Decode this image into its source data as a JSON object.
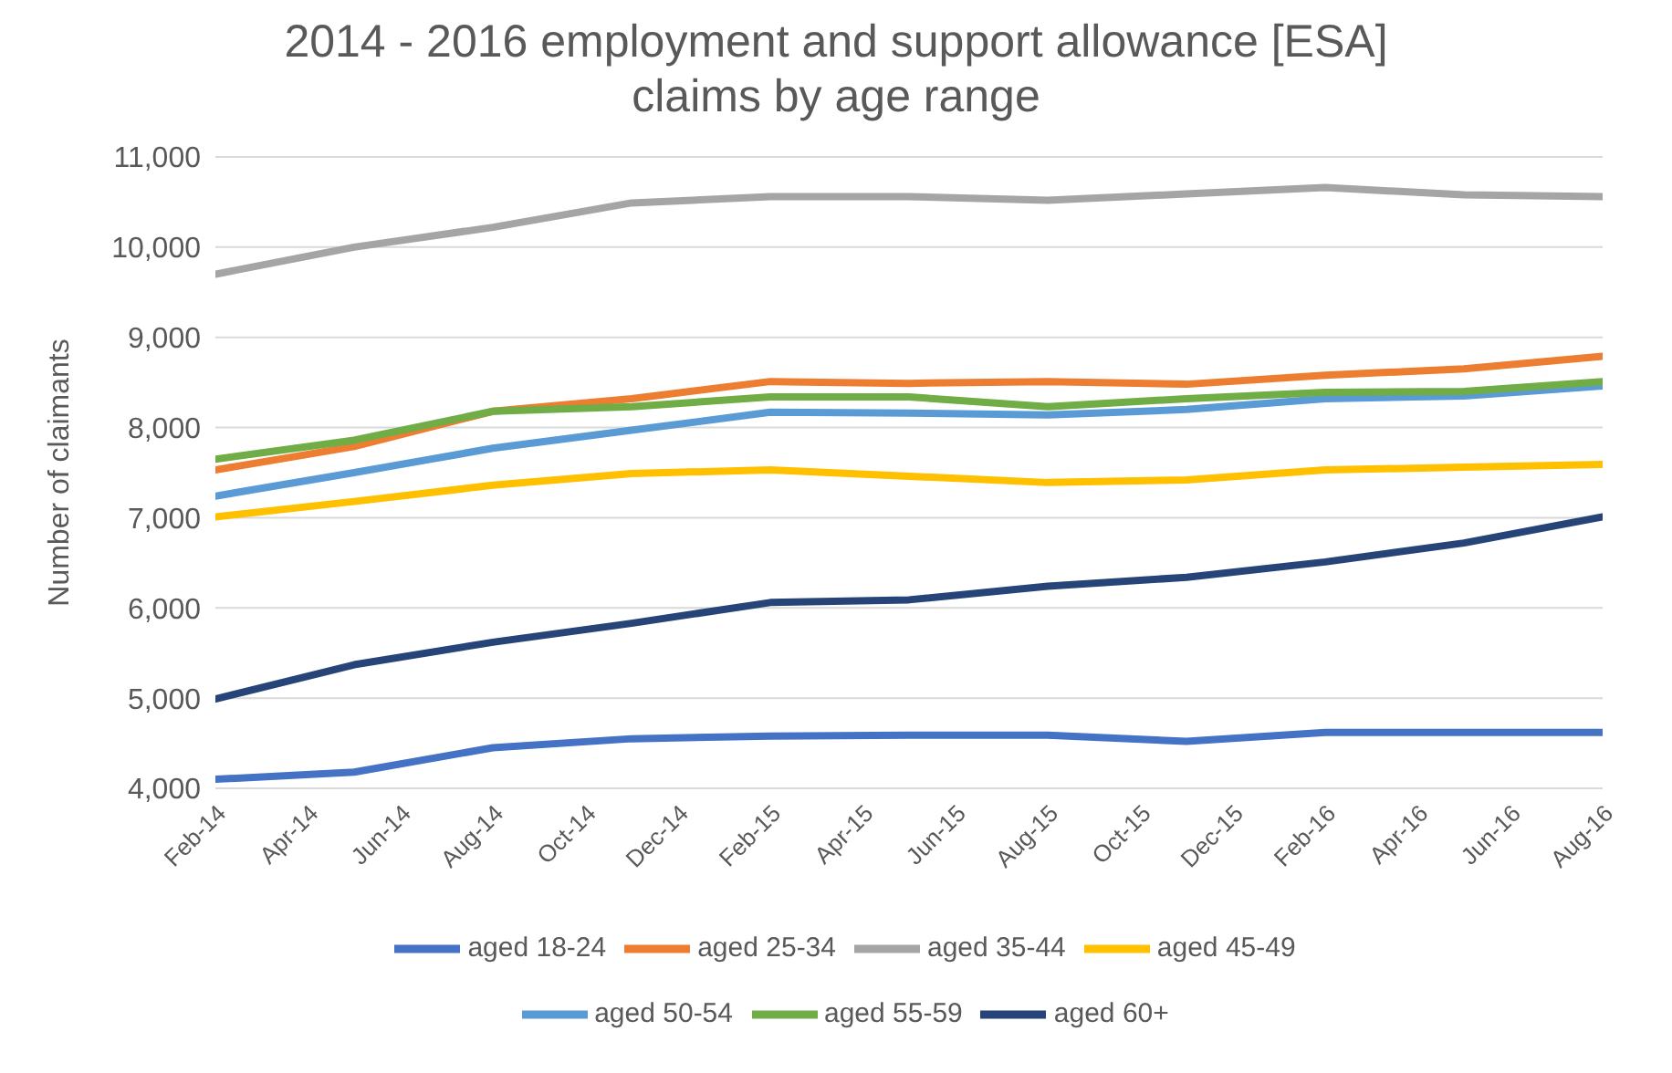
{
  "chart_data": {
    "type": "line",
    "title": "2014 - 2016 employment and support allowance [ESA] claims by age range",
    "ylabel": "Number  of claimants",
    "x": [
      "2014-02",
      "2014-05",
      "2014-08",
      "2014-11",
      "2015-02",
      "2015-05",
      "2015-08",
      "2015-11",
      "2016-02",
      "2016-05",
      "2016-08"
    ],
    "series": [
      {
        "name": "aged 18-24",
        "color": "#4472c4",
        "values": [
          4100,
          4180,
          4450,
          4550,
          4580,
          4590,
          4590,
          4520,
          4620,
          4620,
          4620
        ]
      },
      {
        "name": "aged 25-34",
        "color": "#ed7d31",
        "values": [
          7530,
          7790,
          8180,
          8320,
          8510,
          8490,
          8510,
          8480,
          8580,
          8650,
          8790
        ]
      },
      {
        "name": "aged 35-44",
        "color": "#a5a5a5",
        "values": [
          9700,
          10000,
          10220,
          10490,
          10560,
          10560,
          10520,
          10590,
          10660,
          10580,
          10560
        ]
      },
      {
        "name": "aged 45-49",
        "color": "#ffc000",
        "values": [
          7010,
          7180,
          7360,
          7490,
          7530,
          7460,
          7390,
          7420,
          7530,
          7560,
          7590
        ]
      },
      {
        "name": "aged 50-54",
        "color": "#5b9bd5",
        "values": [
          7240,
          7500,
          7770,
          7970,
          8170,
          8160,
          8140,
          8200,
          8320,
          8350,
          8460
        ]
      },
      {
        "name": "aged 55-59",
        "color": "#70ad47",
        "values": [
          7650,
          7860,
          8180,
          8230,
          8340,
          8340,
          8230,
          8320,
          8390,
          8400,
          8510
        ]
      },
      {
        "name": "aged 60+",
        "color": "#264478",
        "values": [
          4990,
          5370,
          5620,
          5830,
          6060,
          6090,
          6240,
          6340,
          6510,
          6720,
          7010
        ]
      }
    ],
    "xlim": [
      "2014-02",
      "2016-08"
    ],
    "xticks": [
      {
        "value": "2014-02",
        "label": "Feb-14"
      },
      {
        "value": "2014-04",
        "label": "Apr-14"
      },
      {
        "value": "2014-06",
        "label": "Jun-14"
      },
      {
        "value": "2014-08",
        "label": "Aug-14"
      },
      {
        "value": "2014-10",
        "label": "Oct-14"
      },
      {
        "value": "2014-12",
        "label": "Dec-14"
      },
      {
        "value": "2015-02",
        "label": "Feb-15"
      },
      {
        "value": "2015-04",
        "label": "Apr-15"
      },
      {
        "value": "2015-06",
        "label": "Jun-15"
      },
      {
        "value": "2015-08",
        "label": "Aug-15"
      },
      {
        "value": "2015-10",
        "label": "Oct-15"
      },
      {
        "value": "2015-12",
        "label": "Dec-15"
      },
      {
        "value": "2016-02",
        "label": "Feb-16"
      },
      {
        "value": "2016-04",
        "label": "Apr-16"
      },
      {
        "value": "2016-06",
        "label": "Jun-16"
      },
      {
        "value": "2016-08",
        "label": "Aug-16"
      }
    ],
    "ylim": [
      4000,
      11000
    ],
    "yticks": [
      {
        "value": 4000,
        "label": "4,000"
      },
      {
        "value": 5000,
        "label": "5,000"
      },
      {
        "value": 6000,
        "label": "6,000"
      },
      {
        "value": 7000,
        "label": "7,000"
      },
      {
        "value": 8000,
        "label": "8,000"
      },
      {
        "value": 9000,
        "label": "9,000"
      },
      {
        "value": 10000,
        "label": "10,000"
      },
      {
        "value": 11000,
        "label": "11,000"
      }
    ],
    "grid": "y",
    "legend": "bottom",
    "marker": "none",
    "line_style": "solid"
  }
}
